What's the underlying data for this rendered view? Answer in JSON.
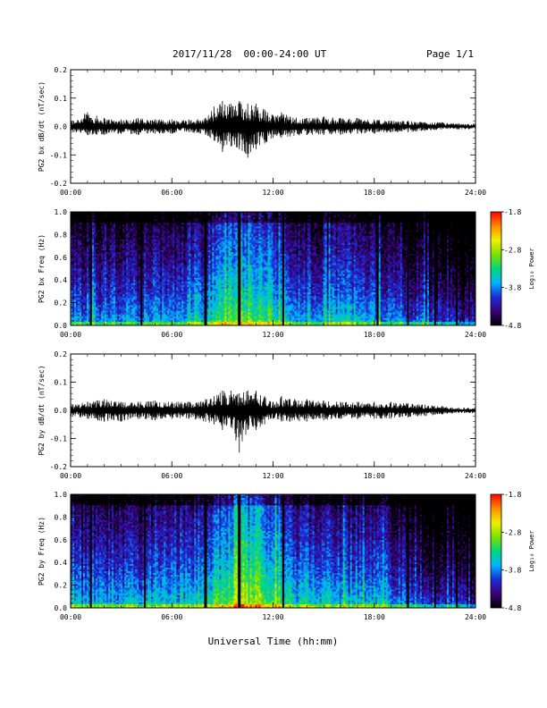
{
  "header": {
    "date_range": "2017/11/28  00:00-24:00 UT",
    "page": "Page 1/1"
  },
  "xlabel": "Universal Time (hh:mm)",
  "colorbar": {
    "label": "Log₁₀ Power",
    "ticks": [
      "-1.8",
      "-2.8",
      "-3.8",
      "-4.8"
    ],
    "range": [
      -4.8,
      -1.8
    ],
    "colors": [
      "#000000",
      "#3a007a",
      "#1a2dd8",
      "#00b4ff",
      "#00d87a",
      "#7ee000",
      "#f0f000",
      "#ff8c00",
      "#ff0000"
    ]
  },
  "chart_data": [
    {
      "type": "line",
      "ylabel": "PG2 bx dB/dt (nT/sec)",
      "ylim": [
        -0.2,
        0.2
      ],
      "yticks": [
        "0.2",
        "0.1",
        "0.0",
        "-0.1",
        "-0.2"
      ],
      "xticks": [
        "00:00",
        "06:00",
        "12:00",
        "18:00",
        "24:00"
      ],
      "xlim_hours": [
        0,
        24
      ],
      "series": [
        {
          "hours": [
            0,
            1,
            2,
            3,
            4,
            5,
            6,
            7,
            8,
            8.5,
            9,
            9.5,
            10,
            10.5,
            11,
            11.5,
            12,
            12.5,
            13,
            14,
            15,
            16,
            17,
            18,
            19,
            20,
            21,
            22,
            23,
            24
          ],
          "max": [
            0.02,
            0.05,
            0.03,
            0.025,
            0.03,
            0.025,
            0.025,
            0.025,
            0.03,
            0.07,
            0.09,
            0.08,
            0.09,
            0.08,
            0.08,
            0.06,
            0.04,
            0.05,
            0.035,
            0.03,
            0.035,
            0.03,
            0.03,
            0.025,
            0.02,
            0.02,
            0.015,
            0.015,
            0.01,
            0.01
          ],
          "min": [
            -0.02,
            -0.03,
            -0.03,
            -0.025,
            -0.03,
            -0.025,
            -0.025,
            -0.02,
            -0.03,
            -0.05,
            -0.09,
            -0.07,
            -0.08,
            -0.11,
            -0.08,
            -0.06,
            -0.04,
            -0.04,
            -0.035,
            -0.03,
            -0.03,
            -0.03,
            -0.025,
            -0.025,
            -0.02,
            -0.02,
            -0.015,
            -0.01,
            -0.01,
            -0.01
          ]
        }
      ]
    },
    {
      "type": "heatmap",
      "ylabel": "PG2 bx Freq (Hz)",
      "ylim": [
        0.0,
        1.0
      ],
      "yticks": [
        "1.0",
        "0.8",
        "0.6",
        "0.4",
        "0.2",
        "0.0"
      ],
      "xticks": [
        "00:00",
        "06:00",
        "12:00",
        "18:00",
        "24:00"
      ],
      "xlim_hours": [
        0,
        24
      ],
      "zlim": [
        -4.8,
        -1.8
      ],
      "data_gap_hours": [
        1.2,
        4.2,
        8.0,
        10.0,
        12.6,
        18.2,
        20.0,
        21.6,
        22.9
      ],
      "activity_profile": {
        "hours": [
          0,
          2,
          4,
          6,
          8,
          9,
          10,
          11,
          12,
          13,
          14,
          16,
          18,
          20,
          22,
          24
        ],
        "log10_power_low_freq": [
          -3.6,
          -3.5,
          -3.5,
          -3.4,
          -3.2,
          -2.9,
          -2.7,
          -2.8,
          -3.0,
          -3.3,
          -3.4,
          -3.3,
          -3.4,
          -3.6,
          -3.9,
          -4.1
        ]
      }
    },
    {
      "type": "line",
      "ylabel": "PG2 by dB/dt (nT/sec)",
      "ylim": [
        -0.2,
        0.2
      ],
      "yticks": [
        "0.2",
        "0.1",
        "0.0",
        "-0.1",
        "-0.2"
      ],
      "xticks": [
        "00:00",
        "06:00",
        "12:00",
        "18:00",
        "24:00"
      ],
      "xlim_hours": [
        0,
        24
      ],
      "series": [
        {
          "hours": [
            0,
            1,
            2,
            3,
            4,
            5,
            6,
            7,
            8,
            8.5,
            9,
            9.5,
            10,
            10.5,
            11,
            11.5,
            12,
            12.5,
            13,
            14,
            15,
            16,
            17,
            18,
            19,
            20,
            21,
            22,
            23,
            24
          ],
          "max": [
            0.02,
            0.03,
            0.04,
            0.03,
            0.03,
            0.035,
            0.03,
            0.03,
            0.04,
            0.05,
            0.07,
            0.07,
            0.06,
            0.07,
            0.07,
            0.05,
            0.03,
            0.05,
            0.04,
            0.04,
            0.035,
            0.03,
            0.03,
            0.03,
            0.03,
            0.025,
            0.02,
            0.015,
            0.01,
            0.01
          ],
          "min": [
            -0.02,
            -0.03,
            -0.04,
            -0.04,
            -0.03,
            -0.035,
            -0.03,
            -0.03,
            -0.04,
            -0.05,
            -0.07,
            -0.06,
            -0.15,
            -0.07,
            -0.07,
            -0.05,
            -0.03,
            -0.04,
            -0.04,
            -0.04,
            -0.035,
            -0.03,
            -0.03,
            -0.03,
            -0.03,
            -0.025,
            -0.02,
            -0.015,
            -0.01,
            -0.01
          ]
        }
      ]
    },
    {
      "type": "heatmap",
      "ylabel": "PG2 by Freq (Hz)",
      "ylim": [
        0.0,
        1.0
      ],
      "yticks": [
        "1.0",
        "0.8",
        "0.6",
        "0.4",
        "0.2",
        "0.0"
      ],
      "xticks": [
        "00:00",
        "06:00",
        "12:00",
        "18:00",
        "24:00"
      ],
      "xlim_hours": [
        0,
        24
      ],
      "zlim": [
        -4.8,
        -1.8
      ],
      "data_gap_hours": [
        1.2,
        4.4,
        8.0,
        10.0,
        12.6,
        20.0,
        21.6,
        22.9
      ],
      "activity_profile": {
        "hours": [
          0,
          2,
          4,
          6,
          8,
          9,
          10,
          11,
          12,
          13,
          14,
          16,
          18,
          20,
          22,
          24
        ],
        "log10_power_low_freq": [
          -3.5,
          -3.4,
          -3.4,
          -3.3,
          -3.1,
          -2.9,
          -2.6,
          -2.6,
          -2.8,
          -3.2,
          -3.3,
          -3.3,
          -3.3,
          -3.6,
          -3.9,
          -4.1
        ]
      }
    }
  ]
}
